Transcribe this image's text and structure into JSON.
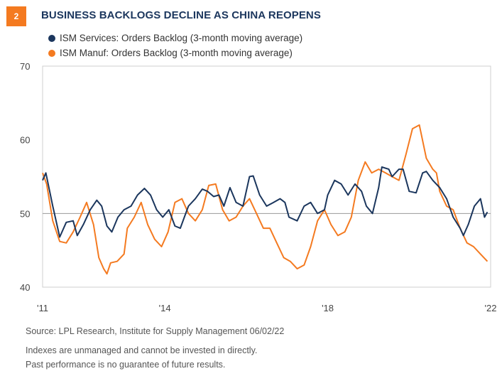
{
  "badge": "2",
  "title": "BUSINESS BACKLOGS DECLINE AS CHINA REOPENS",
  "footer": {
    "source": "Source: LPL Research, Institute for Supply Management  06/02/22",
    "note1": "Indexes are unmanaged and cannot be invested in directly.",
    "note2": "Past performance is no guarantee of future results."
  },
  "colors": {
    "services": "#1b365d",
    "manuf": "#f47a20",
    "refline": "#999999",
    "frame": "#cfcfcf"
  },
  "chart_data": {
    "type": "line",
    "title": "",
    "xlabel": "",
    "ylabel": "",
    "ylim": [
      40,
      70
    ],
    "yticks": [
      40,
      50,
      60,
      70
    ],
    "xlim": [
      2011.0,
      2022.0
    ],
    "xticks": [
      {
        "x": 2011,
        "label": "'11"
      },
      {
        "x": 2014,
        "label": "'14"
      },
      {
        "x": 2018,
        "label": "'18"
      },
      {
        "x": 2022,
        "label": "'22"
      }
    ],
    "reference_line": 50,
    "grid": false,
    "legend": "top-left",
    "series": [
      {
        "name": "ISM Services: Orders Backlog (3-month moving average)",
        "key": "services",
        "points": [
          [
            2011.0,
            54.5
          ],
          [
            2011.08,
            55.5
          ],
          [
            2011.25,
            51
          ],
          [
            2011.42,
            46.8
          ],
          [
            2011.58,
            48.8
          ],
          [
            2011.75,
            49
          ],
          [
            2011.85,
            47
          ],
          [
            2012.0,
            48.5
          ],
          [
            2012.17,
            50.5
          ],
          [
            2012.33,
            51.8
          ],
          [
            2012.45,
            51
          ],
          [
            2012.58,
            48.3
          ],
          [
            2012.7,
            47.5
          ],
          [
            2012.85,
            49.5
          ],
          [
            2013.0,
            50.5
          ],
          [
            2013.17,
            51
          ],
          [
            2013.33,
            52.5
          ],
          [
            2013.5,
            53.4
          ],
          [
            2013.65,
            52.5
          ],
          [
            2013.8,
            50.5
          ],
          [
            2013.95,
            49.5
          ],
          [
            2014.1,
            50.5
          ],
          [
            2014.25,
            48.3
          ],
          [
            2014.38,
            48
          ],
          [
            2014.5,
            49.8
          ],
          [
            2014.58,
            51
          ],
          [
            2014.75,
            52
          ],
          [
            2014.92,
            53.3
          ],
          [
            2015.05,
            53
          ],
          [
            2015.2,
            52.3
          ],
          [
            2015.33,
            52.5
          ],
          [
            2015.45,
            51
          ],
          [
            2015.6,
            53.5
          ],
          [
            2015.75,
            51.5
          ],
          [
            2015.92,
            51
          ],
          [
            2016.08,
            55
          ],
          [
            2016.17,
            55.1
          ],
          [
            2016.33,
            52.5
          ],
          [
            2016.5,
            51
          ],
          [
            2016.67,
            51.5
          ],
          [
            2016.83,
            52
          ],
          [
            2016.95,
            51.5
          ],
          [
            2017.05,
            49.5
          ],
          [
            2017.25,
            49
          ],
          [
            2017.42,
            51
          ],
          [
            2017.58,
            51.5
          ],
          [
            2017.75,
            50
          ],
          [
            2017.92,
            50.5
          ],
          [
            2018.0,
            52.5
          ],
          [
            2018.17,
            54.5
          ],
          [
            2018.33,
            54
          ],
          [
            2018.5,
            52.5
          ],
          [
            2018.67,
            54
          ],
          [
            2018.83,
            53
          ],
          [
            2018.95,
            51
          ],
          [
            2019.1,
            50
          ],
          [
            2019.25,
            53.5
          ],
          [
            2019.33,
            56.3
          ],
          [
            2019.5,
            56
          ],
          [
            2019.58,
            55
          ],
          [
            2019.75,
            56
          ],
          [
            2019.85,
            56
          ],
          [
            2020.0,
            53
          ],
          [
            2020.17,
            52.8
          ],
          [
            2020.33,
            55.5
          ],
          [
            2020.42,
            55.7
          ],
          [
            2020.58,
            54.5
          ],
          [
            2020.75,
            53.5
          ],
          [
            2020.92,
            52
          ],
          [
            2021.08,
            49.5
          ],
          [
            2021.25,
            48
          ],
          [
            2021.33,
            47
          ],
          [
            2021.45,
            48.5
          ],
          [
            2021.6,
            51
          ],
          [
            2021.75,
            52
          ],
          [
            2021.85,
            49.5
          ],
          [
            2021.92,
            50.2
          ]
        ]
      },
      {
        "name": "ISM Manuf: Orders Backlog (3-month moving average)",
        "key": "manuf",
        "points": [
          [
            2011.0,
            55.5
          ],
          [
            2011.1,
            54
          ],
          [
            2011.25,
            49
          ],
          [
            2011.42,
            46.2
          ],
          [
            2011.58,
            46
          ],
          [
            2011.75,
            47.5
          ],
          [
            2011.92,
            49.5
          ],
          [
            2012.08,
            51.5
          ],
          [
            2012.25,
            48.5
          ],
          [
            2012.38,
            44
          ],
          [
            2012.5,
            42.5
          ],
          [
            2012.58,
            41.8
          ],
          [
            2012.67,
            43.3
          ],
          [
            2012.83,
            43.5
          ],
          [
            2013.0,
            44.5
          ],
          [
            2013.08,
            48
          ],
          [
            2013.25,
            49.5
          ],
          [
            2013.42,
            51.5
          ],
          [
            2013.58,
            48.5
          ],
          [
            2013.75,
            46.5
          ],
          [
            2013.92,
            45.5
          ],
          [
            2014.08,
            47.5
          ],
          [
            2014.25,
            51.5
          ],
          [
            2014.42,
            52
          ],
          [
            2014.58,
            50
          ],
          [
            2014.75,
            49
          ],
          [
            2014.92,
            50.5
          ],
          [
            2015.08,
            53.8
          ],
          [
            2015.25,
            54
          ],
          [
            2015.42,
            50.5
          ],
          [
            2015.58,
            49
          ],
          [
            2015.75,
            49.5
          ],
          [
            2015.92,
            51
          ],
          [
            2016.08,
            52
          ],
          [
            2016.25,
            50
          ],
          [
            2016.42,
            48
          ],
          [
            2016.58,
            48
          ],
          [
            2016.75,
            46
          ],
          [
            2016.92,
            44
          ],
          [
            2017.08,
            43.5
          ],
          [
            2017.25,
            42.5
          ],
          [
            2017.42,
            43
          ],
          [
            2017.58,
            45.5
          ],
          [
            2017.75,
            49
          ],
          [
            2017.92,
            50.5
          ],
          [
            2018.08,
            48.5
          ],
          [
            2018.25,
            47
          ],
          [
            2018.42,
            47.5
          ],
          [
            2018.58,
            49.5
          ],
          [
            2018.75,
            54.5
          ],
          [
            2018.92,
            57
          ],
          [
            2019.08,
            55.5
          ],
          [
            2019.25,
            56
          ],
          [
            2019.42,
            55.5
          ],
          [
            2019.58,
            55
          ],
          [
            2019.75,
            54.5
          ],
          [
            2019.92,
            58
          ],
          [
            2020.08,
            61.5
          ],
          [
            2020.25,
            62
          ],
          [
            2020.42,
            57.5
          ],
          [
            2020.58,
            56
          ],
          [
            2020.67,
            55.5
          ],
          [
            2020.75,
            53
          ],
          [
            2020.92,
            51
          ],
          [
            2021.08,
            50.5
          ],
          [
            2021.25,
            48
          ],
          [
            2021.42,
            46
          ],
          [
            2021.58,
            45.5
          ],
          [
            2021.75,
            44.5
          ],
          [
            2021.92,
            43.5
          ]
        ]
      }
    ]
  }
}
